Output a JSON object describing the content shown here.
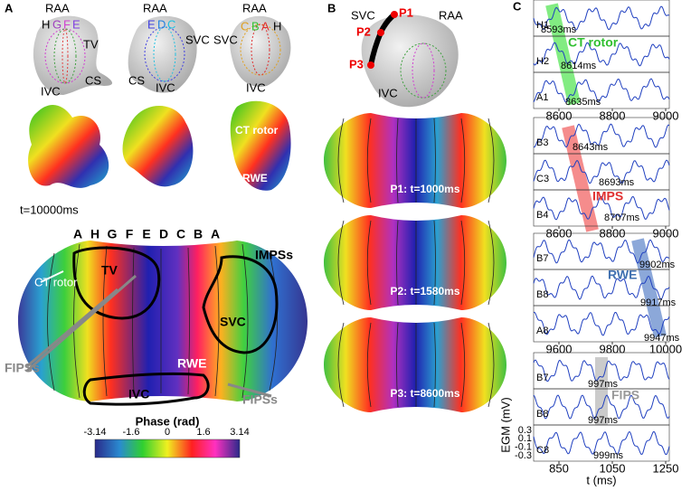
{
  "panel_a": {
    "label": "A",
    "atrium_1": [
      "RAA",
      "H",
      "G",
      "F",
      "E",
      "TV",
      "CS",
      "IVC"
    ],
    "atrium_2": [
      "E",
      "D",
      "C",
      "SVC",
      "CS",
      "IVC"
    ],
    "atrium_3": [
      "RAA",
      "C",
      "B",
      "A",
      "SVC",
      "H",
      "IVC"
    ],
    "atrium_4": [
      "CT rotor",
      "RWE"
    ],
    "time": "t=10000ms",
    "map_letters": [
      "A",
      "H",
      "G",
      "F",
      "E",
      "D",
      "C",
      "B",
      "A"
    ],
    "map_labels": [
      "CT rotor",
      "TV",
      "IMPSs",
      "SVC",
      "FIPSs",
      "RWE",
      "FIPSs",
      "IVC"
    ],
    "colorbar_title": "Phase (rad)",
    "colorbar_ticks": [
      "-3.14",
      "-1.6",
      "0",
      "1.6",
      "3.14"
    ]
  },
  "panel_b": {
    "label": "B",
    "atrium": [
      "SVC",
      "P1",
      "RAA",
      "P2",
      "P3",
      "IVC"
    ],
    "maps": [
      "P1: t=1000ms",
      "P2: t=1580ms",
      "P3: t=8600ms"
    ]
  },
  "panel_c": {
    "label": "C",
    "groups": [
      {
        "channels": [
          "H1",
          "H2",
          "A1"
        ],
        "times": [
          "8593ms",
          "8614ms",
          "8635ms"
        ],
        "event": "CT rotor",
        "ticks": [
          8600,
          8800,
          9000
        ]
      },
      {
        "channels": [
          "B3",
          "C3",
          "B4"
        ],
        "times": [
          "8643ms",
          "8693ms",
          "8707ms"
        ],
        "event": "IMPS",
        "ticks": [
          8600,
          8800,
          9000
        ]
      },
      {
        "channels": [
          "B7",
          "B8",
          "A8"
        ],
        "times": [
          "9902ms",
          "9917ms",
          "9947ms"
        ],
        "event": "RWE",
        "ticks": [
          9600,
          9800,
          10000
        ]
      },
      {
        "channels": [
          "B7",
          "B8",
          "C8"
        ],
        "times": [
          "997ms",
          "997ms",
          "999ms"
        ],
        "event": "FIPS",
        "ticks": [
          850,
          1050,
          1250
        ]
      }
    ],
    "y_label": "EGM (mV)",
    "y_ticks": [
      0.3,
      0.1,
      -0.1,
      -0.3
    ],
    "x_label": "t (ms)"
  }
}
